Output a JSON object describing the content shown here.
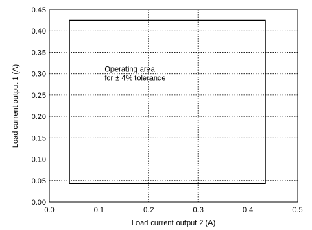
{
  "chart_data": {
    "type": "line",
    "xlabel": "Load current output 2 (A)",
    "ylabel": "Load current output 1 (A)",
    "xlim": [
      0.0,
      0.5
    ],
    "ylim": [
      0.0,
      0.45
    ],
    "x_ticks": [
      "0.0",
      "0.1",
      "0.2",
      "0.3",
      "0.4",
      "0.5"
    ],
    "y_ticks": [
      "0.00",
      "0.05",
      "0.10",
      "0.15",
      "0.20",
      "0.25",
      "0.30",
      "0.35",
      "0.40",
      "0.45"
    ],
    "grid": true,
    "series": [
      {
        "x": [
          0.04,
          0.435,
          0.435,
          0.04,
          0.04
        ],
        "y": [
          0.043,
          0.043,
          0.425,
          0.425,
          0.043
        ]
      }
    ],
    "annotation": {
      "lines": [
        "Operating area",
        "for ± 4% tolerance"
      ],
      "x": 0.111,
      "y": 0.305
    }
  }
}
